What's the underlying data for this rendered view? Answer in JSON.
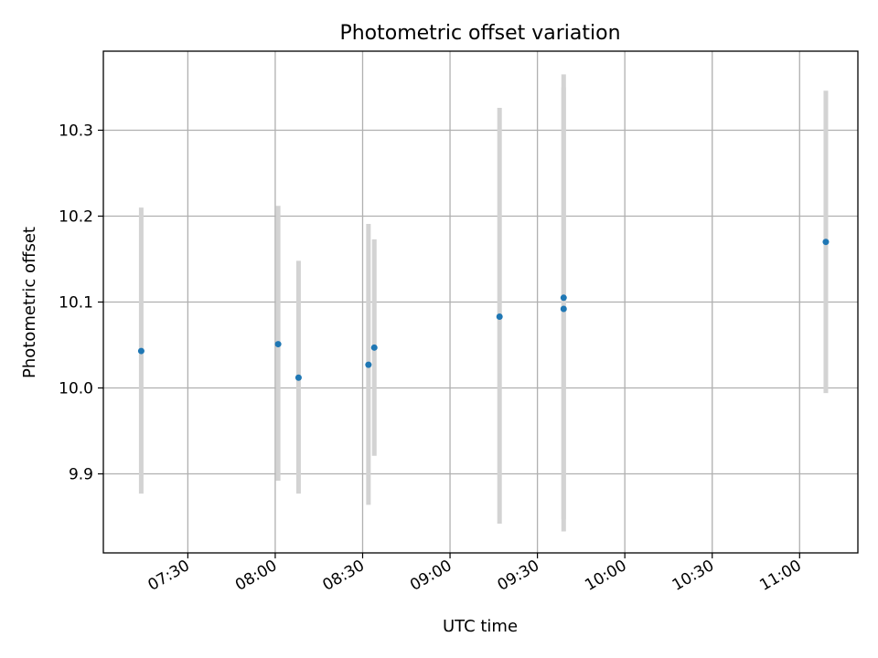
{
  "chart_data": {
    "type": "scatter",
    "title": "Photometric offset variation",
    "xlabel": "UTC time",
    "ylabel": "Photometric offset",
    "x_ticks": [
      "07:30",
      "08:00",
      "08:30",
      "09:00",
      "09:30",
      "10:00",
      "10:30",
      "11:00"
    ],
    "y_ticks": [
      "9.9",
      "10.0",
      "10.1",
      "10.2",
      "10.3"
    ],
    "xlim": [
      "07:01",
      "11:20"
    ],
    "ylim": [
      9.808,
      10.392
    ],
    "grid": true,
    "colors": {
      "points": "#1f77b4",
      "errorbars": "#d3d3d3"
    },
    "points": [
      {
        "x": "07:14",
        "y": 10.043,
        "ylow": 9.877,
        "yhigh": 10.21
      },
      {
        "x": "08:01",
        "y": 10.051,
        "ylow": 9.892,
        "yhigh": 10.212
      },
      {
        "x": "08:08",
        "y": 10.012,
        "ylow": 9.877,
        "yhigh": 10.148
      },
      {
        "x": "08:32",
        "y": 10.027,
        "ylow": 9.864,
        "yhigh": 10.191
      },
      {
        "x": "08:34",
        "y": 10.047,
        "ylow": 9.921,
        "yhigh": 10.173
      },
      {
        "x": "09:17",
        "y": 10.083,
        "ylow": 9.842,
        "yhigh": 10.326
      },
      {
        "x": "09:39",
        "y": 10.105,
        "ylow": 9.847,
        "yhigh": 10.365
      },
      {
        "x": "09:39",
        "y": 10.092,
        "ylow": 9.833,
        "yhigh": 10.35
      },
      {
        "x": "11:09",
        "y": 10.17,
        "ylow": 9.994,
        "yhigh": 10.346
      }
    ]
  }
}
